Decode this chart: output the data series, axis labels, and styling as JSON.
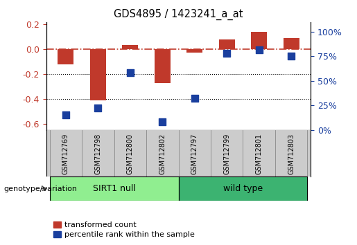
{
  "title": "GDS4895 / 1423241_a_at",
  "samples": [
    "GSM712769",
    "GSM712798",
    "GSM712800",
    "GSM712802",
    "GSM712797",
    "GSM712799",
    "GSM712801",
    "GSM712803"
  ],
  "transformed_count": [
    -0.12,
    -0.41,
    0.035,
    -0.27,
    -0.025,
    0.08,
    0.14,
    0.09
  ],
  "percentile_rank": [
    15,
    22,
    58,
    8,
    32,
    78,
    82,
    75
  ],
  "groups": [
    {
      "label": "SIRT1 null",
      "start": 0,
      "end": 4,
      "color": "#90ee90"
    },
    {
      "label": "wild type",
      "start": 4,
      "end": 8,
      "color": "#3cb371"
    }
  ],
  "ylim_left": [
    -0.65,
    0.22
  ],
  "ylim_right": [
    0,
    110
  ],
  "yticks_left": [
    0.2,
    0.0,
    -0.2,
    -0.4,
    -0.6
  ],
  "yticks_right": [
    0,
    25,
    50,
    75,
    100
  ],
  "bar_color_red": "#c0392b",
  "bar_color_blue": "#1a3f9e",
  "zero_line_color": "#c0392b",
  "dotted_line_color": "black",
  "legend_red_label": "transformed count",
  "legend_blue_label": "percentile rank within the sample",
  "genotype_label": "genotype/variation",
  "bar_width": 0.5,
  "blue_marker_size": 60
}
